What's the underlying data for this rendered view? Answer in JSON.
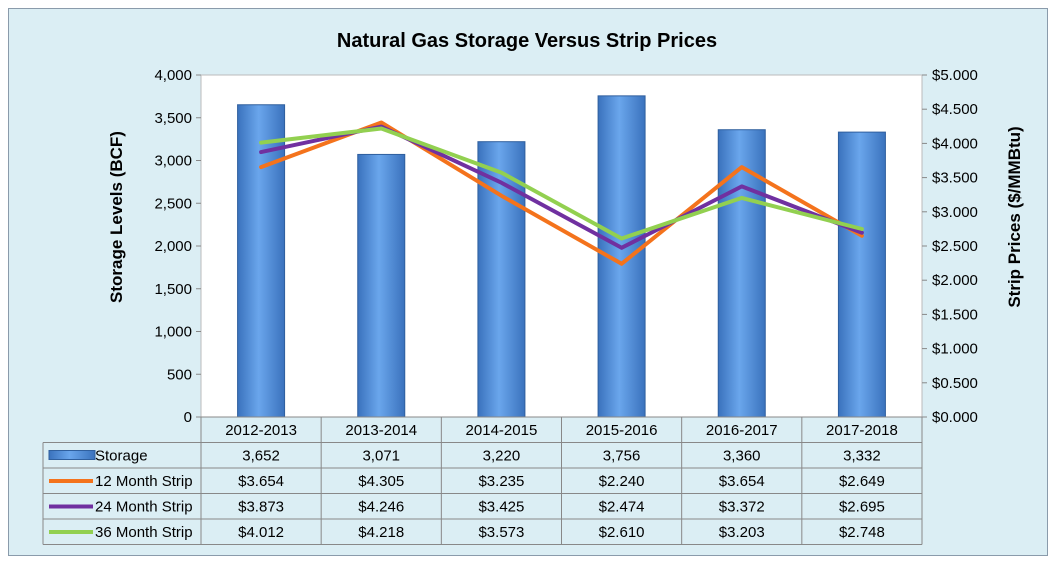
{
  "chart_data": {
    "type": "bar",
    "title": "Natural Gas Storage Versus Strip Prices",
    "ylabel": "Storage Levels (BCF)",
    "y2label": "Strip Prices ($/MMBtu)",
    "ylim": [
      0,
      4000
    ],
    "y2lim": [
      0,
      5
    ],
    "yticks": [
      "0",
      "500",
      "1,000",
      "1,500",
      "2,000",
      "2,500",
      "3,000",
      "3,500",
      "4,000"
    ],
    "y2ticks": [
      "$0.000",
      "$0.500",
      "$1.000",
      "$1.500",
      "$2.000",
      "$2.500",
      "$3.000",
      "$3.500",
      "$4.000",
      "$4.500",
      "$5.000"
    ],
    "categories": [
      "2012-2013",
      "2013-2014",
      "2014-2015",
      "2015-2016",
      "2016-2017",
      "2017-2018"
    ],
    "series": [
      {
        "name": "Storage",
        "kind": "bar",
        "axis": "left",
        "color": "#4f8fdc",
        "values": [
          3652,
          3071,
          3220,
          3756,
          3360,
          3332
        ],
        "labels": [
          "3,652",
          "3,071",
          "3,220",
          "3,756",
          "3,360",
          "3,332"
        ]
      },
      {
        "name": "12 Month Strip",
        "kind": "line",
        "axis": "right",
        "color": "#f4731c",
        "values": [
          3.654,
          4.305,
          3.235,
          2.24,
          3.654,
          2.649
        ],
        "labels": [
          "$3.654",
          "$4.305",
          "$3.235",
          "$2.240",
          "$3.654",
          "$2.649"
        ]
      },
      {
        "name": "24 Month Strip",
        "kind": "line",
        "axis": "right",
        "color": "#7030a0",
        "values": [
          3.873,
          4.246,
          3.425,
          2.474,
          3.372,
          2.695
        ],
        "labels": [
          "$3.873",
          "$4.246",
          "$3.425",
          "$2.474",
          "$3.372",
          "$2.695"
        ]
      },
      {
        "name": "36 Month Strip",
        "kind": "line",
        "axis": "right",
        "color": "#92d050",
        "values": [
          4.012,
          4.218,
          3.573,
          2.61,
          3.203,
          2.748
        ],
        "labels": [
          "$4.012",
          "$4.218",
          "$3.573",
          "$2.610",
          "$3.203",
          "$2.748"
        ]
      }
    ],
    "grid": false,
    "legend": "data-table"
  }
}
